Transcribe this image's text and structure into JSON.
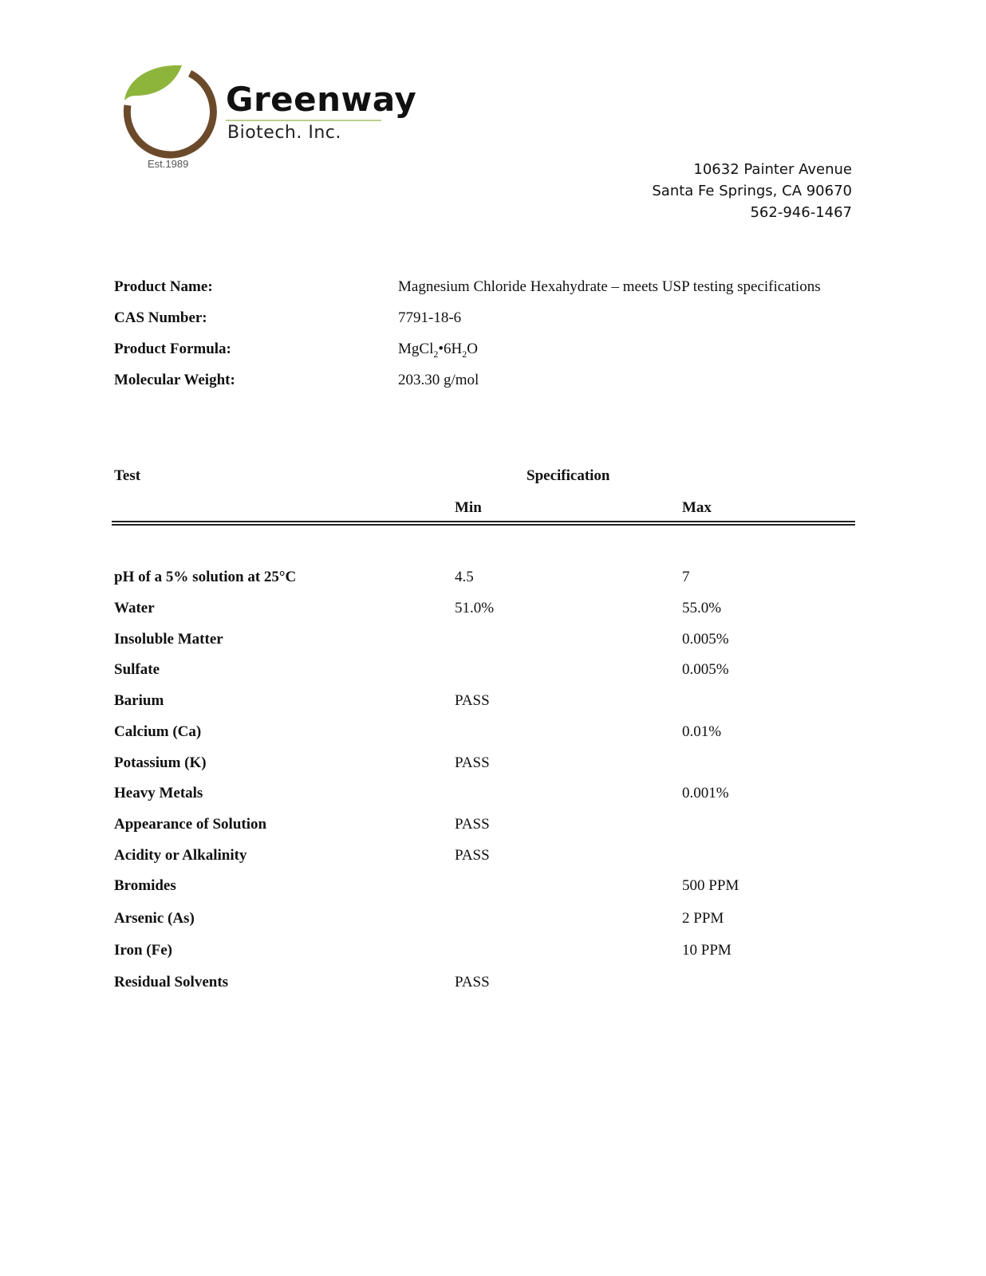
{
  "logo": {
    "name": "Greenway",
    "sub": "Biotech. Inc.",
    "est": "Est.1989",
    "colors": {
      "leaf": "#8db53c",
      "ring": "#6b4a2b"
    }
  },
  "address": {
    "line1": "10632 Painter Avenue",
    "line2": "Santa Fe Springs, CA 90670",
    "phone": "562-946-1467"
  },
  "product": {
    "name_label": "Product Name:",
    "name": "Magnesium Chloride Hexahydrate – meets USP testing specifications",
    "cas_label": "CAS Number:",
    "cas": "7791-18-6",
    "formula_label": "Product Formula:",
    "formula_parts": [
      "MgCl",
      "2",
      "•6H",
      "2",
      "O"
    ],
    "mw_label": "Molecular Weight:",
    "mw": "203.30 g/mol"
  },
  "table": {
    "test_header": "Test",
    "spec_header": "Specification",
    "min_header": "Min",
    "max_header": "Max",
    "rows": [
      {
        "test": "pH of a 5% solution at 25°C",
        "min": "4.5",
        "max": "7"
      },
      {
        "test": "Water",
        "min": "51.0%",
        "max": "55.0%"
      },
      {
        "test": "Insoluble Matter",
        "min": "",
        "max": "0.005%"
      },
      {
        "test": "Sulfate",
        "min": "",
        "max": "0.005%"
      },
      {
        "test": "Barium",
        "min": "PASS",
        "max": ""
      },
      {
        "test": "Calcium (Ca)",
        "min": "",
        "max": "0.01%"
      },
      {
        "test": "Potassium (K)",
        "min": "PASS",
        "max": ""
      },
      {
        "test": "Heavy Metals",
        "min": "",
        "max": "0.001%"
      },
      {
        "test": "Appearance of Solution",
        "min": "PASS",
        "max": ""
      },
      {
        "test": "Acidity or Alkalinity",
        "min": "PASS",
        "max": ""
      },
      {
        "test": "Bromides",
        "min": "",
        "max": "500 PPM"
      },
      {
        "test": "Arsenic (As)",
        "min": "",
        "max": "2 PPM"
      },
      {
        "test": "Iron (Fe)",
        "min": "",
        "max": "10 PPM"
      },
      {
        "test": "Residual Solvents",
        "min": "PASS",
        "max": ""
      }
    ]
  }
}
